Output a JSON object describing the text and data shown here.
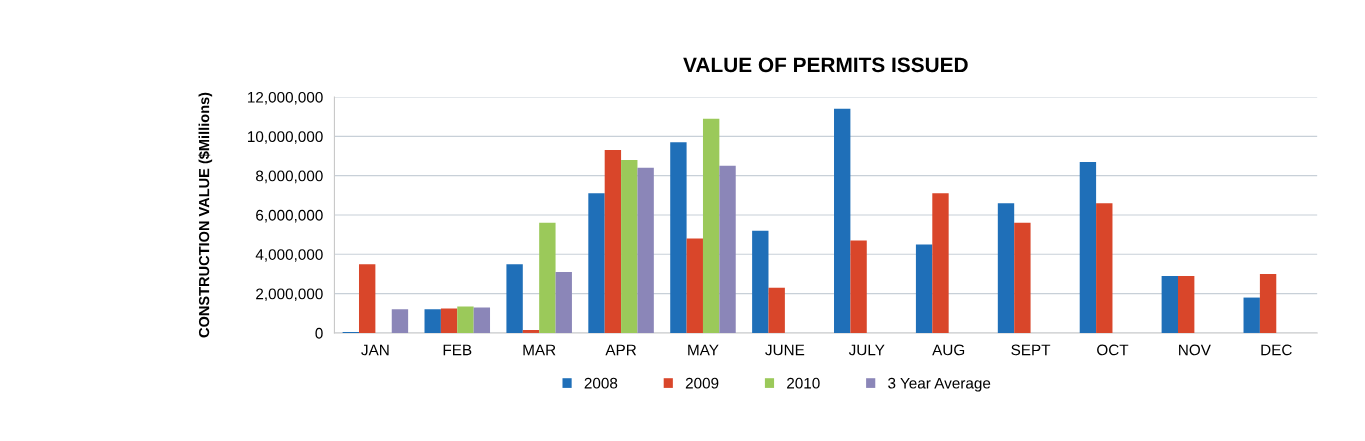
{
  "chart_data": {
    "type": "bar",
    "title": "VALUE OF PERMITS ISSUED",
    "ylabel": "CONSTRUCTION VALUE ($Millions)",
    "categories": [
      "JAN",
      "FEB",
      "MAR",
      "APR",
      "MAY",
      "JUNE",
      "JULY",
      "AUG",
      "SEPT",
      "OCT",
      "NOV",
      "DEC"
    ],
    "series": [
      {
        "name": "2008",
        "color": "#1f6fb8",
        "values": [
          50000,
          1200000,
          3500000,
          7100000,
          9700000,
          5200000,
          11400000,
          4500000,
          6600000,
          8700000,
          2900000,
          1800000
        ]
      },
      {
        "name": "2009",
        "color": "#d9462a",
        "values": [
          3500000,
          1250000,
          150000,
          9300000,
          4800000,
          2300000,
          4700000,
          7100000,
          5600000,
          6600000,
          2900000,
          3000000
        ]
      },
      {
        "name": "2010",
        "color": "#9bc95a",
        "values": [
          null,
          1350000,
          5600000,
          8800000,
          10900000,
          null,
          null,
          null,
          null,
          null,
          null,
          null
        ]
      },
      {
        "name": "3 Year Average",
        "color": "#8b86b8",
        "values": [
          1200000,
          1300000,
          3100000,
          8400000,
          8500000,
          null,
          null,
          null,
          null,
          null,
          null,
          null
        ]
      }
    ],
    "ylim": [
      0,
      12000000
    ],
    "yticks": [
      {
        "value": 0,
        "label": "0"
      },
      {
        "value": 2000000,
        "label": "2,000,000"
      },
      {
        "value": 4000000,
        "label": "4,000,000"
      },
      {
        "value": 6000000,
        "label": "6,000,000"
      },
      {
        "value": 8000000,
        "label": "8,000,000"
      },
      {
        "value": 10000000,
        "label": "10,000,000"
      },
      {
        "value": 12000000,
        "label": "12,000,000"
      }
    ],
    "grid": "y",
    "legend": "bottom"
  }
}
